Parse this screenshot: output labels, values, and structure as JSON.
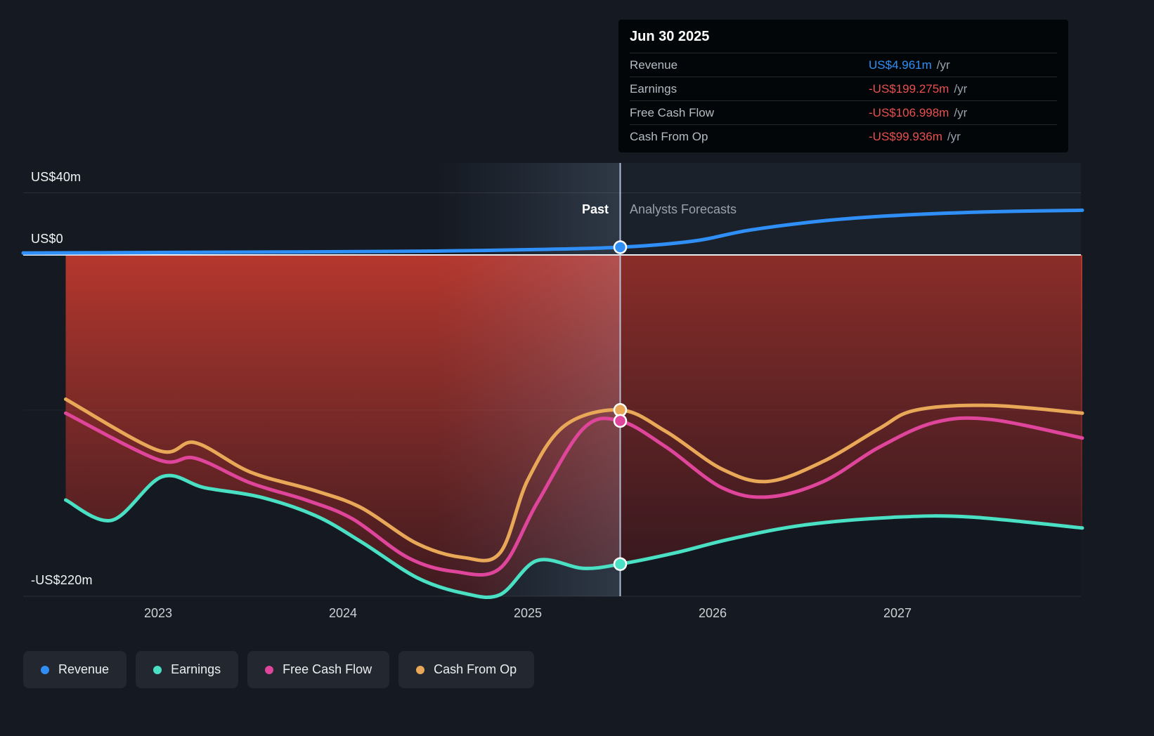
{
  "page": {
    "background": "#151a22"
  },
  "tooltip": {
    "date": "Jun 30 2025",
    "rows": [
      {
        "label": "Revenue",
        "value": "US$4.961m",
        "unit": "/yr",
        "color": "#2f8ff7"
      },
      {
        "label": "Earnings",
        "value": "-US$199.275m",
        "unit": "/yr",
        "color": "#e8504e"
      },
      {
        "label": "Free Cash Flow",
        "value": "-US$106.998m",
        "unit": "/yr",
        "color": "#e8504e"
      },
      {
        "label": "Cash From Op",
        "value": "-US$99.936m",
        "unit": "/yr",
        "color": "#e8504e"
      }
    ]
  },
  "labels": {
    "past": "Past",
    "forecast": "Analysts Forecasts"
  },
  "y_axis": [
    {
      "text": "US$40m"
    },
    {
      "text": "US$0"
    },
    {
      "text": "-US$220m"
    }
  ],
  "x_axis": [
    "2023",
    "2024",
    "2025",
    "2026",
    "2027"
  ],
  "legend": [
    {
      "label": "Revenue",
      "color": "#2f8ff7"
    },
    {
      "label": "Earnings",
      "color": "#49e0c4"
    },
    {
      "label": "Free Cash Flow",
      "color": "#e0459c"
    },
    {
      "label": "Cash From Op",
      "color": "#e8a857"
    }
  ],
  "chart_data": {
    "type": "line",
    "title": "Earnings and Revenue Growth Forecast",
    "x_unit": "calendar year",
    "y_unit": "US$ millions",
    "xlim": [
      2022.27,
      2028
    ],
    "ylim": [
      -220,
      40
    ],
    "y_gridlines": [
      40,
      0,
      -100,
      -220
    ],
    "divider_year": 2025.5,
    "divider_date": "Jun 30 2025",
    "past_region": [
      2022.27,
      2025.5
    ],
    "forecast_region": [
      2025.5,
      2028
    ],
    "negative_area_gradient": [
      "rgba(190,57,46,0.95)",
      "rgba(142,45,41,0.85)",
      "rgba(72,26,30,0.80)"
    ],
    "series": [
      {
        "name": "Revenue",
        "color": "#2f8ff7",
        "points": [
          [
            2022.27,
            1.2
          ],
          [
            2023,
            1.6
          ],
          [
            2023.5,
            1.8
          ],
          [
            2024,
            2.1
          ],
          [
            2024.5,
            2.5
          ],
          [
            2025,
            3.4
          ],
          [
            2025.5,
            4.961
          ],
          [
            2025.9,
            9
          ],
          [
            2026.2,
            16
          ],
          [
            2026.6,
            22
          ],
          [
            2027,
            25.5
          ],
          [
            2027.5,
            27.8
          ],
          [
            2028,
            28.8
          ]
        ]
      },
      {
        "name": "Earnings",
        "color": "#49e0c4",
        "points": [
          [
            2022.5,
            -158
          ],
          [
            2022.75,
            -171
          ],
          [
            2023.02,
            -143
          ],
          [
            2023.25,
            -150
          ],
          [
            2023.55,
            -156
          ],
          [
            2023.85,
            -168
          ],
          [
            2024.1,
            -185
          ],
          [
            2024.4,
            -208
          ],
          [
            2024.65,
            -218
          ],
          [
            2024.85,
            -219
          ],
          [
            2025.05,
            -197
          ],
          [
            2025.3,
            -202
          ],
          [
            2025.5,
            -199.275
          ],
          [
            2025.8,
            -192
          ],
          [
            2026.1,
            -183
          ],
          [
            2026.5,
            -174
          ],
          [
            2027,
            -169
          ],
          [
            2027.4,
            -169
          ],
          [
            2028,
            -176
          ]
        ]
      },
      {
        "name": "Free Cash Flow",
        "color": "#e0459c",
        "points": [
          [
            2022.5,
            -102
          ],
          [
            2023,
            -132
          ],
          [
            2023.2,
            -131
          ],
          [
            2023.5,
            -147
          ],
          [
            2023.8,
            -158
          ],
          [
            2024.05,
            -170
          ],
          [
            2024.35,
            -195
          ],
          [
            2024.6,
            -204
          ],
          [
            2024.85,
            -202
          ],
          [
            2025.05,
            -160
          ],
          [
            2025.3,
            -112
          ],
          [
            2025.5,
            -106.998
          ],
          [
            2025.75,
            -124
          ],
          [
            2026.05,
            -150
          ],
          [
            2026.3,
            -156
          ],
          [
            2026.6,
            -146
          ],
          [
            2026.9,
            -124
          ],
          [
            2027.2,
            -108
          ],
          [
            2027.5,
            -106
          ],
          [
            2028,
            -118
          ]
        ]
      },
      {
        "name": "Cash From Op",
        "color": "#e8a857",
        "points": [
          [
            2022.5,
            -93
          ],
          [
            2023,
            -126
          ],
          [
            2023.2,
            -121
          ],
          [
            2023.5,
            -140
          ],
          [
            2023.85,
            -152
          ],
          [
            2024.1,
            -163
          ],
          [
            2024.4,
            -186
          ],
          [
            2024.65,
            -195
          ],
          [
            2024.85,
            -192
          ],
          [
            2025,
            -145
          ],
          [
            2025.2,
            -110
          ],
          [
            2025.5,
            -99.936
          ],
          [
            2025.75,
            -114
          ],
          [
            2026.05,
            -138
          ],
          [
            2026.3,
            -146
          ],
          [
            2026.6,
            -133
          ],
          [
            2026.9,
            -112
          ],
          [
            2027.1,
            -100
          ],
          [
            2027.5,
            -97
          ],
          [
            2028,
            -102
          ]
        ]
      }
    ]
  }
}
